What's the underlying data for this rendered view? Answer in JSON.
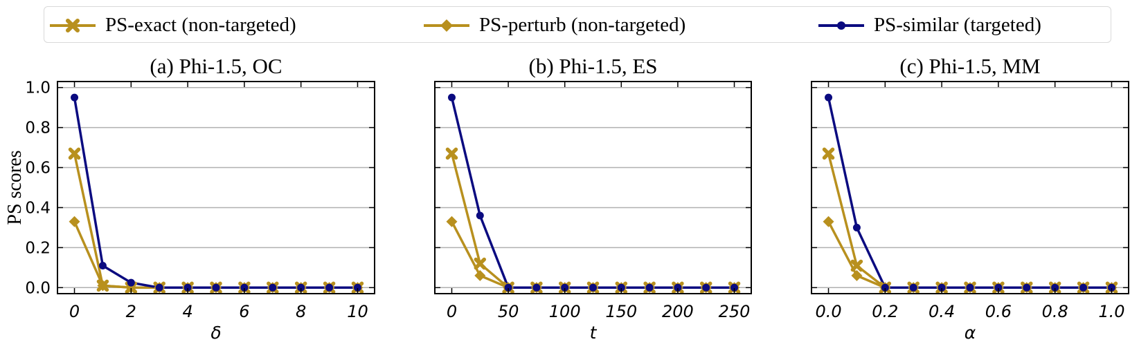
{
  "colors": {
    "gold": "#B8901E",
    "navy": "#0B0B80",
    "grid": "#b0b0b0"
  },
  "legend": [
    {
      "label": "PS-exact (non-targeted)",
      "marker": "x-marker",
      "color": "#B8901E"
    },
    {
      "label": "PS-perturb (non-targeted)",
      "marker": "diamond-marker",
      "color": "#B8901E"
    },
    {
      "label": "PS-similar (targeted)",
      "marker": "circle-marker",
      "color": "#0B0B80"
    }
  ],
  "shared_ylabel": "PS scores",
  "chart_data": [
    {
      "type": "line",
      "title": "(a) Phi-1.5, OC",
      "xlabel": "δ",
      "ylabel": "PS scores",
      "xlim": [
        -0.6,
        10.6
      ],
      "ylim": [
        -0.03,
        1.03
      ],
      "xticks": [
        0,
        2,
        4,
        6,
        8,
        10
      ],
      "xtick_labels": [
        "0",
        "2",
        "4",
        "6",
        "8",
        "10"
      ],
      "yticks": [
        0.0,
        0.2,
        0.4,
        0.6,
        0.8,
        1.0
      ],
      "ytick_labels": [
        "0.0",
        "0.2",
        "0.4",
        "0.6",
        "0.8",
        "1.0"
      ],
      "grid": "horizontal",
      "x": [
        0,
        1,
        2,
        3,
        4,
        5,
        6,
        7,
        8,
        9,
        10
      ],
      "series": [
        {
          "name": "PS-exact (non-targeted)",
          "values": [
            0.67,
            0.01,
            0.0,
            0.0,
            0.0,
            0.0,
            0.0,
            0.0,
            0.0,
            0.0,
            0.0
          ]
        },
        {
          "name": "PS-perturb (non-targeted)",
          "values": [
            0.33,
            0.01,
            0.0,
            0.0,
            0.0,
            0.0,
            0.0,
            0.0,
            0.0,
            0.0,
            0.0
          ]
        },
        {
          "name": "PS-similar (targeted)",
          "values": [
            0.95,
            0.11,
            0.025,
            0.0,
            0.0,
            0.0,
            0.0,
            0.0,
            0.0,
            0.0,
            0.0
          ]
        }
      ]
    },
    {
      "type": "line",
      "title": "(b) Phi-1.5, ES",
      "xlabel": "t",
      "ylabel": "",
      "xlim": [
        -15,
        265
      ],
      "ylim": [
        -0.03,
        1.03
      ],
      "xticks": [
        0,
        50,
        100,
        150,
        200,
        250
      ],
      "xtick_labels": [
        "0",
        "50",
        "100",
        "150",
        "200",
        "250"
      ],
      "yticks": [
        0.0,
        0.2,
        0.4,
        0.6,
        0.8,
        1.0
      ],
      "ytick_labels": [],
      "grid": "horizontal",
      "x": [
        0,
        25,
        50,
        75,
        100,
        125,
        150,
        175,
        200,
        225,
        250
      ],
      "series": [
        {
          "name": "PS-exact (non-targeted)",
          "values": [
            0.67,
            0.12,
            0.0,
            0.0,
            0.0,
            0.0,
            0.0,
            0.0,
            0.0,
            0.0,
            0.0
          ]
        },
        {
          "name": "PS-perturb (non-targeted)",
          "values": [
            0.33,
            0.06,
            0.0,
            0.0,
            0.0,
            0.0,
            0.0,
            0.0,
            0.0,
            0.0,
            0.0
          ]
        },
        {
          "name": "PS-similar (targeted)",
          "values": [
            0.95,
            0.36,
            0.0,
            0.0,
            0.0,
            0.0,
            0.0,
            0.0,
            0.0,
            0.0,
            0.0
          ]
        }
      ]
    },
    {
      "type": "line",
      "title": "(c) Phi-1.5, MM",
      "xlabel": "α",
      "ylabel": "",
      "xlim": [
        -0.06,
        1.06
      ],
      "ylim": [
        -0.03,
        1.03
      ],
      "xticks": [
        0.0,
        0.2,
        0.4,
        0.6,
        0.8,
        1.0
      ],
      "xtick_labels": [
        "0.0",
        "0.2",
        "0.4",
        "0.6",
        "0.8",
        "1.0"
      ],
      "yticks": [
        0.0,
        0.2,
        0.4,
        0.6,
        0.8,
        1.0
      ],
      "ytick_labels": [],
      "grid": "horizontal",
      "x": [
        0.0,
        0.1,
        0.2,
        0.3,
        0.4,
        0.5,
        0.6,
        0.7,
        0.8,
        0.9,
        1.0
      ],
      "series": [
        {
          "name": "PS-exact (non-targeted)",
          "values": [
            0.67,
            0.11,
            0.0,
            0.0,
            0.0,
            0.0,
            0.0,
            0.0,
            0.0,
            0.0,
            0.0
          ]
        },
        {
          "name": "PS-perturb (non-targeted)",
          "values": [
            0.33,
            0.06,
            0.0,
            0.0,
            0.0,
            0.0,
            0.0,
            0.0,
            0.0,
            0.0,
            0.0
          ]
        },
        {
          "name": "PS-similar (targeted)",
          "values": [
            0.95,
            0.3,
            0.0,
            0.0,
            0.0,
            0.0,
            0.0,
            0.0,
            0.0,
            0.0,
            0.0
          ]
        }
      ]
    }
  ]
}
